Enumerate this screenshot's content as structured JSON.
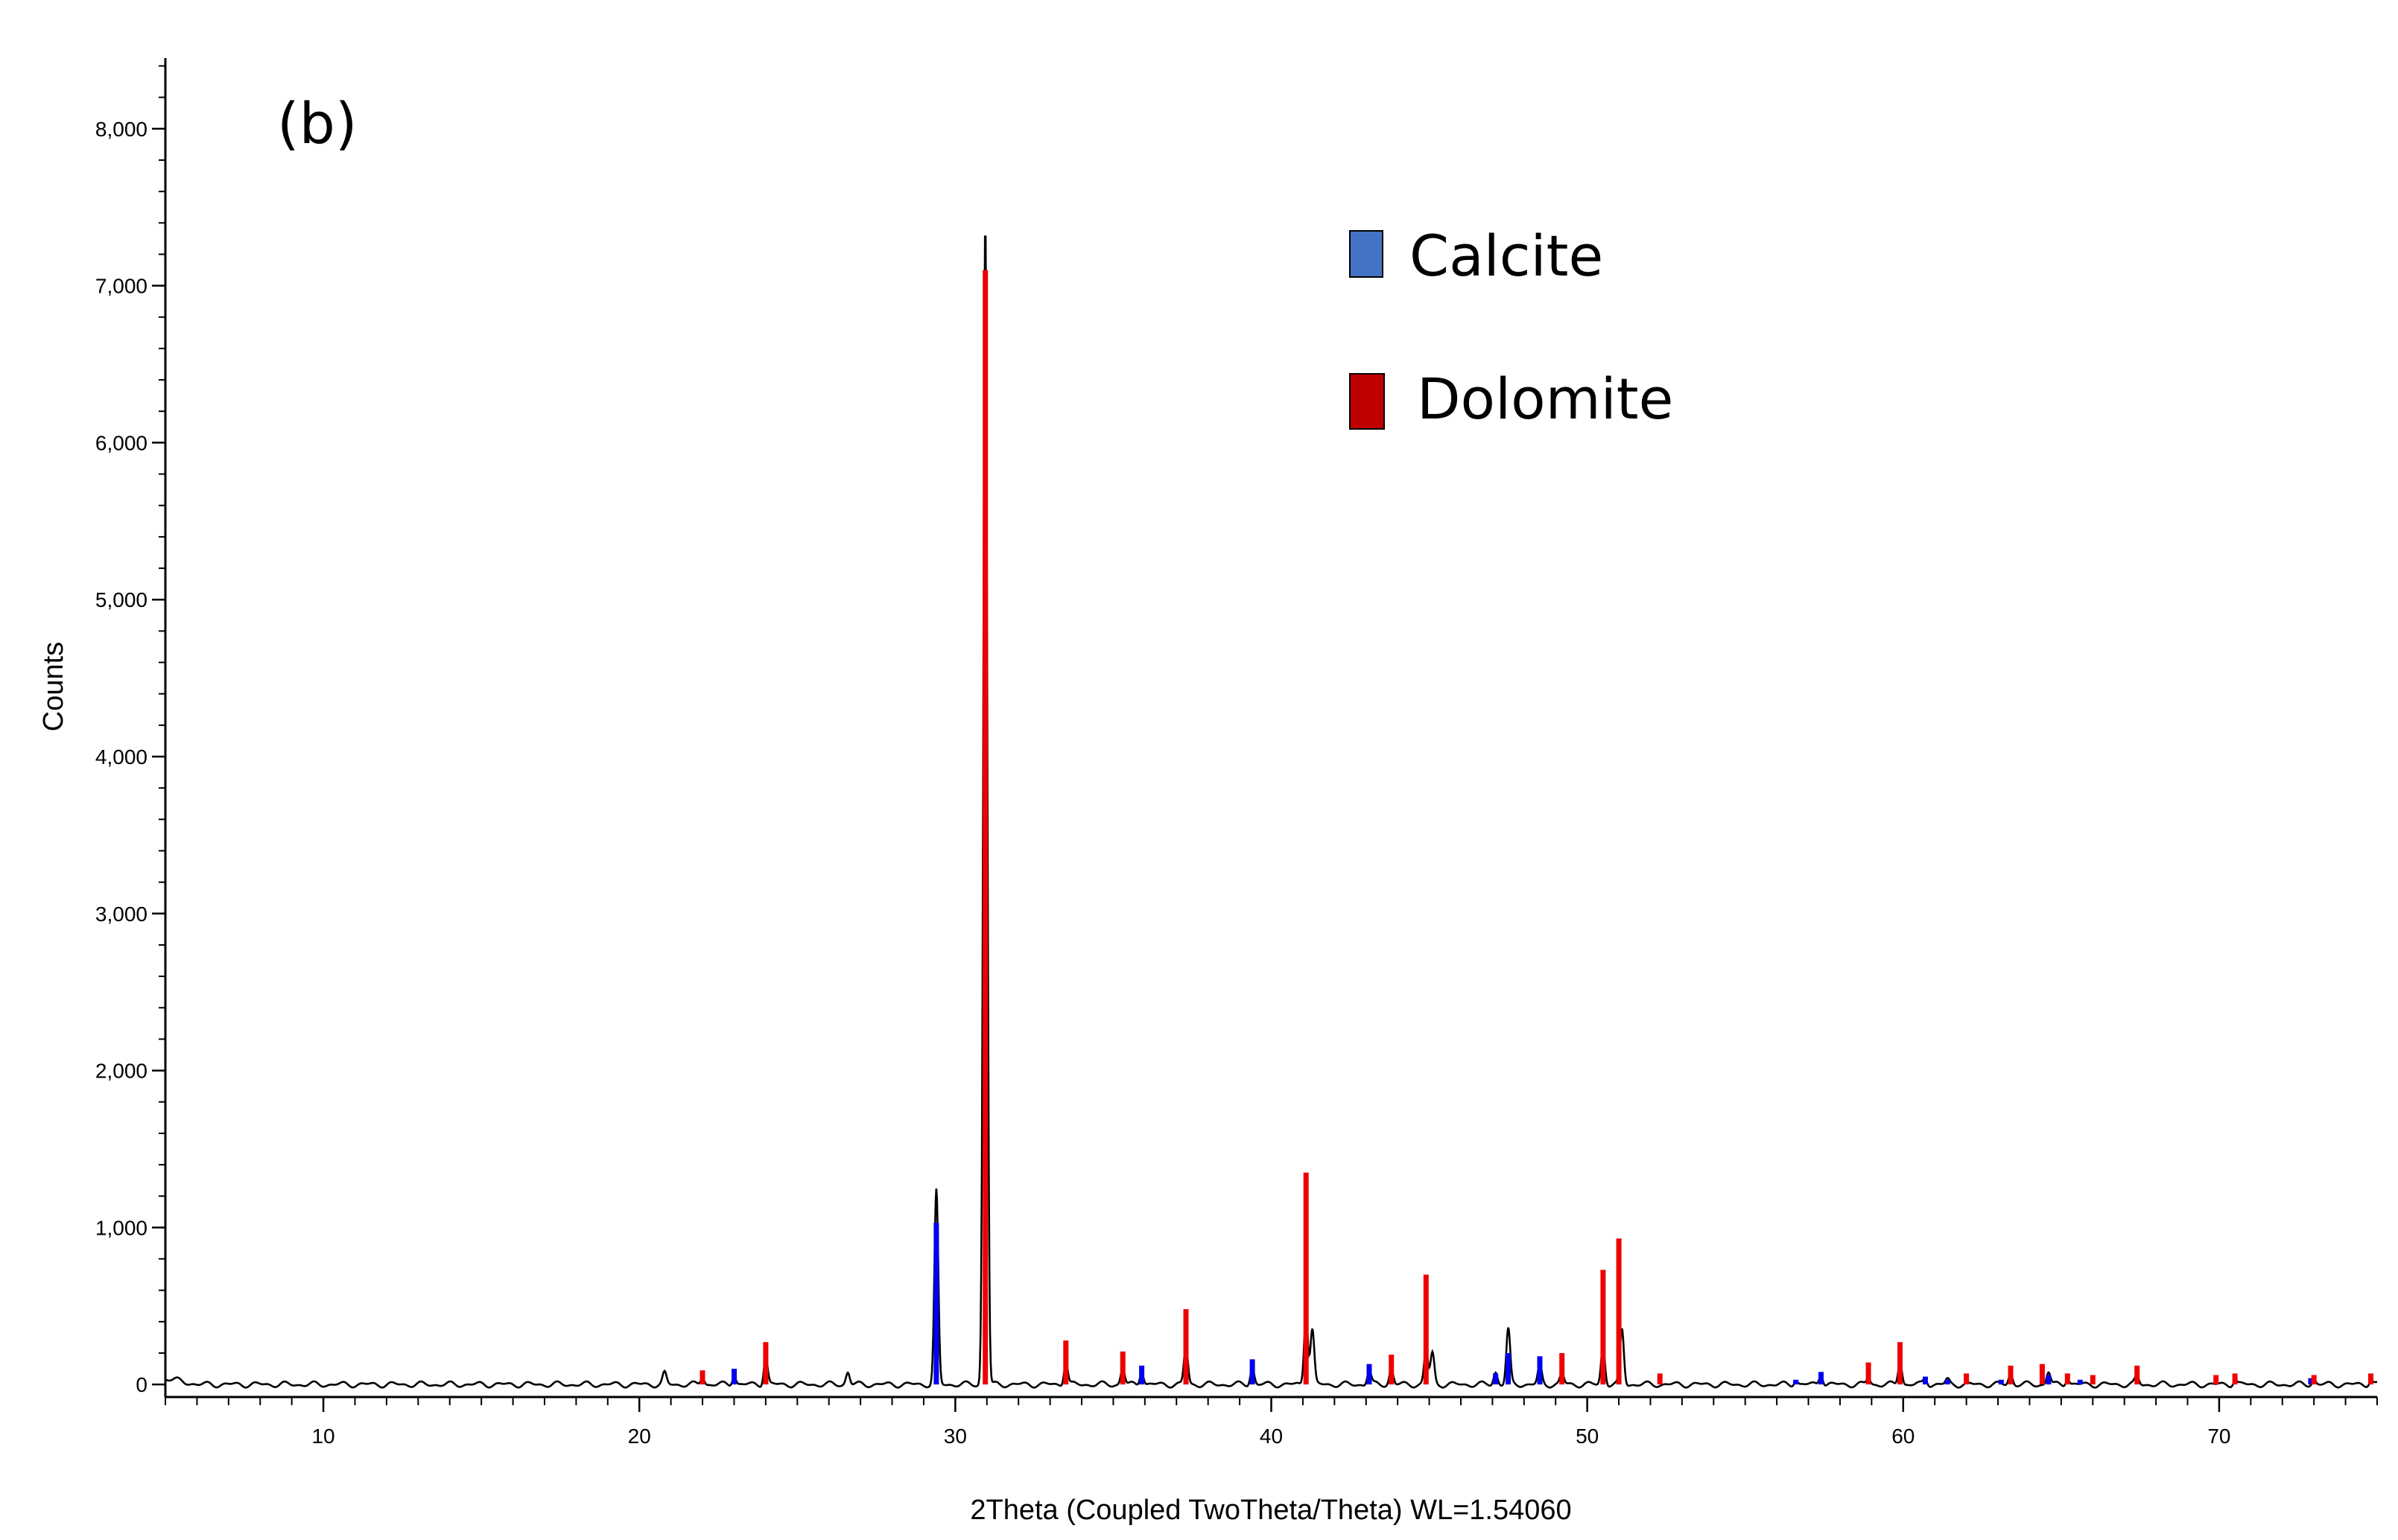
{
  "chart_data": {
    "type": "line",
    "panel_label": "(b)",
    "xlabel": "2Theta (Coupled TwoTheta/Theta) WL=1.54060",
    "ylabel": "Counts",
    "xlim": [
      5,
      75
    ],
    "ylim": [
      -80,
      8450
    ],
    "x_ticks": [
      10,
      20,
      30,
      40,
      50,
      60,
      70
    ],
    "y_ticks": [
      0,
      1000,
      2000,
      3000,
      4000,
      5000,
      6000,
      7000,
      8000
    ],
    "y_tick_labels": [
      "0",
      "1,000",
      "2,000",
      "3,000",
      "4,000",
      "5,000",
      "6,000",
      "7,000",
      "8,000"
    ],
    "legend": [
      {
        "name": "Calcite",
        "color": "#4472c4"
      },
      {
        "name": "Dolomite",
        "color": "#c00000"
      }
    ],
    "series": [
      {
        "name": "Measured pattern",
        "color": "#000000",
        "baseline": 0,
        "peaks": [
          [
            20.8,
            70
          ],
          [
            22.0,
            50
          ],
          [
            23.0,
            60
          ],
          [
            24.0,
            180
          ],
          [
            26.6,
            80
          ],
          [
            29.4,
            1230
          ],
          [
            30.95,
            7420
          ],
          [
            33.5,
            150
          ],
          [
            35.3,
            110
          ],
          [
            35.9,
            90
          ],
          [
            37.3,
            250
          ],
          [
            39.4,
            110
          ],
          [
            41.1,
            460
          ],
          [
            41.3,
            350
          ],
          [
            43.1,
            90
          ],
          [
            43.8,
            100
          ],
          [
            44.9,
            220
          ],
          [
            45.1,
            200
          ],
          [
            47.1,
            80
          ],
          [
            47.5,
            350
          ],
          [
            48.5,
            120
          ],
          [
            49.2,
            70
          ],
          [
            50.5,
            250
          ],
          [
            51.1,
            350
          ],
          [
            56.6,
            30
          ],
          [
            57.4,
            70
          ],
          [
            58.9,
            40
          ],
          [
            59.9,
            150
          ],
          [
            60.7,
            40
          ],
          [
            61.4,
            30
          ],
          [
            63.4,
            70
          ],
          [
            64.6,
            80
          ],
          [
            65.2,
            40
          ],
          [
            67.4,
            50
          ],
          [
            70.5,
            30
          ],
          [
            73.0,
            30
          ],
          [
            74.8,
            30
          ]
        ]
      },
      {
        "name": "Calcite",
        "color": "#0000ee",
        "sticks": [
          [
            23.0,
            100
          ],
          [
            29.4,
            1030
          ],
          [
            35.9,
            120
          ],
          [
            39.4,
            160
          ],
          [
            43.1,
            130
          ],
          [
            47.1,
            70
          ],
          [
            47.5,
            200
          ],
          [
            48.5,
            180
          ],
          [
            56.6,
            30
          ],
          [
            57.4,
            80
          ],
          [
            60.7,
            50
          ],
          [
            61.4,
            30
          ],
          [
            63.1,
            30
          ],
          [
            64.6,
            60
          ],
          [
            65.6,
            30
          ],
          [
            72.9,
            40
          ]
        ]
      },
      {
        "name": "Dolomite",
        "color": "#ee0000",
        "sticks": [
          [
            22.0,
            90
          ],
          [
            24.0,
            270
          ],
          [
            30.95,
            7100
          ],
          [
            33.5,
            280
          ],
          [
            35.3,
            210
          ],
          [
            37.3,
            480
          ],
          [
            41.1,
            1350
          ],
          [
            43.8,
            190
          ],
          [
            44.9,
            700
          ],
          [
            49.2,
            200
          ],
          [
            50.5,
            730
          ],
          [
            51.0,
            930
          ],
          [
            52.3,
            70
          ],
          [
            58.9,
            140
          ],
          [
            59.9,
            270
          ],
          [
            62.0,
            70
          ],
          [
            63.4,
            120
          ],
          [
            64.4,
            130
          ],
          [
            65.2,
            70
          ],
          [
            66.0,
            60
          ],
          [
            67.4,
            120
          ],
          [
            69.9,
            60
          ],
          [
            70.5,
            70
          ],
          [
            73.0,
            60
          ],
          [
            74.8,
            70
          ]
        ]
      }
    ]
  }
}
